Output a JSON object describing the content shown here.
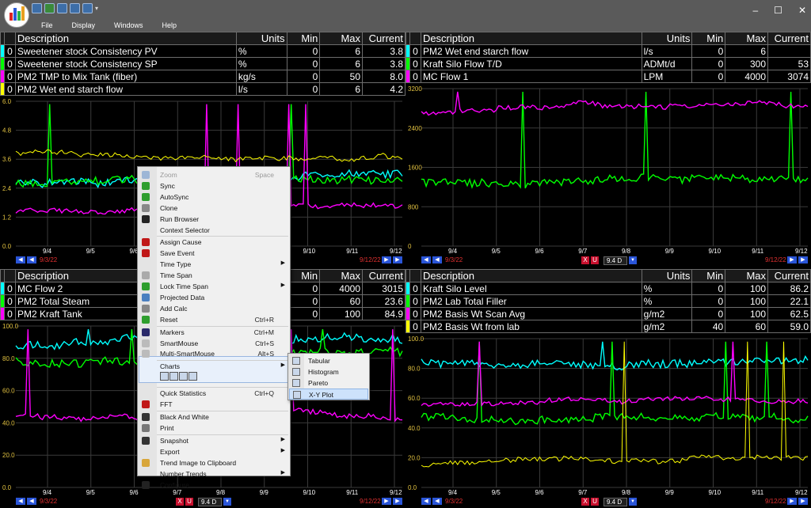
{
  "menu": {
    "file": "File",
    "display": "Display",
    "windows": "Windows",
    "help": "Help"
  },
  "window_controls": {
    "minimize": "–",
    "maximize": "☐",
    "close": "✕"
  },
  "legend_headers": {
    "description": "Description",
    "units": "Units",
    "min": "Min",
    "max": "Max",
    "current": "Current"
  },
  "panels": [
    {
      "rows": [
        {
          "idx": "0",
          "color": "#00ffff",
          "description": "Sweetener stock Consistency PV",
          "units": "%",
          "min": "0",
          "max": "6",
          "current": "3.8"
        },
        {
          "idx": "0",
          "color": "#00ff00",
          "description": "Sweetener stock Consistency SP",
          "units": "%",
          "min": "0",
          "max": "6",
          "current": "3.8"
        },
        {
          "idx": "0",
          "color": "#ff00ff",
          "description": "PM2 TMP to Mix Tank (fiber)",
          "units": "kg/s",
          "min": "0",
          "max": "50",
          "current": "8.0"
        },
        {
          "idx": "0",
          "color": "#ffff00",
          "description": "PM2 Wet end starch flow",
          "units": "l/s",
          "min": "0",
          "max": "6",
          "current": "4.2"
        }
      ],
      "y_ticks": [
        "6.0",
        "4.8",
        "3.6",
        "2.4",
        "1.2",
        "0.0"
      ],
      "x_ticks": [
        "9/4",
        "9/5",
        "9/6",
        "9/7",
        "9/8",
        "9/9",
        "9/10",
        "9/11",
        "9/12"
      ],
      "start_date": "9/3/22",
      "end_date": "9/12/22"
    },
    {
      "rows": [
        {
          "idx": "0",
          "color": "#00ffff",
          "description": "PM2 Wet end starch flow",
          "units": "l/s",
          "min": "0",
          "max": "6",
          "current": ""
        },
        {
          "idx": "0",
          "color": "#00ff00",
          "description": "Kraft Silo Flow T/D",
          "units": "ADMt/d",
          "min": "0",
          "max": "300",
          "current": "53"
        },
        {
          "idx": "0",
          "color": "#ff00ff",
          "description": "MC Flow 1",
          "units": "LPM",
          "min": "0",
          "max": "4000",
          "current": "3074"
        }
      ],
      "y_ticks": [
        "3200",
        "2400",
        "1600",
        "800",
        "0"
      ],
      "x_ticks": [
        "9/4",
        "9/5",
        "9/6",
        "9/7",
        "9/8",
        "9/9",
        "9/10",
        "9/11",
        "9/12"
      ],
      "start_date": "9/3/22",
      "end_date": "9/12/22",
      "time_span": "9.4 D"
    },
    {
      "rows": [
        {
          "idx": "0",
          "color": "#00ffff",
          "description": "MC Flow 2",
          "units": "",
          "min": "0",
          "max": "4000",
          "current": "3015"
        },
        {
          "idx": "0",
          "color": "#00ff00",
          "description": "PM2 Total Steam",
          "units": "",
          "min": "0",
          "max": "60",
          "current": "23.6"
        },
        {
          "idx": "0",
          "color": "#ff00ff",
          "description": "PM2 Kraft Tank",
          "units": "",
          "min": "0",
          "max": "100",
          "current": "84.9"
        }
      ],
      "y_ticks": [
        "100.0",
        "80.0",
        "60.0",
        "40.0",
        "20.0",
        "0.0"
      ],
      "x_ticks": [
        "9/4",
        "9/5",
        "9/6",
        "9/7",
        "9/8",
        "9/9",
        "9/10",
        "9/11",
        "9/12"
      ],
      "start_date": "9/3/22",
      "end_date": "9/12/22",
      "time_span": "9.4 D"
    },
    {
      "rows": [
        {
          "idx": "0",
          "color": "#00ffff",
          "description": "Kraft Silo Level",
          "units": "%",
          "min": "0",
          "max": "100",
          "current": "86.2"
        },
        {
          "idx": "0",
          "color": "#00ff00",
          "description": "PM2 Lab Total Filler",
          "units": "%",
          "min": "0",
          "max": "100",
          "current": "22.1"
        },
        {
          "idx": "0",
          "color": "#ff00ff",
          "description": "PM2 Basis Wt Scan Avg",
          "units": "g/m2",
          "min": "0",
          "max": "100",
          "current": "62.5"
        },
        {
          "idx": "0",
          "color": "#ffff00",
          "description": "PM2 Basis Wt from lab",
          "units": "g/m2",
          "min": "40",
          "max": "60",
          "current": "59.0"
        }
      ],
      "y_ticks": [
        "100.0",
        "80.0",
        "60.0",
        "40.0",
        "20.0",
        "0.0"
      ],
      "x_ticks": [
        "9/4",
        "9/5",
        "9/6",
        "9/7",
        "9/8",
        "9/9",
        "9/10",
        "9/11",
        "9/12"
      ],
      "start_date": "9/3/22",
      "end_date": "9/12/22",
      "time_span": "9.4 D"
    }
  ],
  "context_menu": [
    {
      "label": "Zoom",
      "shortcut": "Space",
      "disabled": true,
      "icon": "zoom-icon",
      "color": "#9db6d6"
    },
    {
      "label": "Sync",
      "icon": "sync-icon",
      "color": "#2e9e2e"
    },
    {
      "label": "AutoSync",
      "icon": "autosync-icon",
      "color": "#2e9e2e"
    },
    {
      "label": "Clone",
      "icon": "clone-icon",
      "color": "#888888"
    },
    {
      "label": "Run Browser",
      "icon": "run-icon",
      "color": "#222222"
    },
    {
      "label": "Context Selector",
      "icon": ""
    },
    {
      "label": "Assign Cause",
      "icon": "assign-cause-icon",
      "color": "#c01818",
      "sep_before": true
    },
    {
      "label": "Save Event",
      "icon": "save-event-icon",
      "color": "#c01818"
    },
    {
      "label": "Time Type",
      "submenu": true,
      "icon": ""
    },
    {
      "label": "Time Span",
      "icon": "time-span-icon",
      "color": "#aaaaaa"
    },
    {
      "label": "Lock Time Span",
      "submenu": true,
      "icon": "lock-time-span-icon",
      "color": "#2e9e2e"
    },
    {
      "label": "Projected Data",
      "icon": "projected-data-icon",
      "color": "#4a7fc0"
    },
    {
      "label": "Add Calc",
      "icon": "add-calc-icon",
      "color": "#888888"
    },
    {
      "label": "Reset",
      "shortcut": "Ctrl+R",
      "icon": "reset-icon",
      "color": "#2e9e2e"
    },
    {
      "label": "Markers",
      "shortcut": "Ctrl+M",
      "icon": "markers-icon",
      "color": "#2a2a6a",
      "sep_before": true
    },
    {
      "label": "SmartMouse",
      "shortcut": "Ctrl+S",
      "icon": "smartmouse-icon",
      "color": "#bbbbbb"
    },
    {
      "label": "Multi-SmartMouse",
      "shortcut": "Alt+S",
      "icon": "multi-smartmouse-icon",
      "color": "#bbbbbb"
    },
    {
      "label": "Charts",
      "submenu": true,
      "icon": "",
      "sep_before": true,
      "highlight": true
    },
    {
      "label": "Quick Statistics",
      "shortcut": "Ctrl+Q",
      "icon": "",
      "sep_before": true
    },
    {
      "label": "FFT",
      "icon": "fft-icon",
      "color": "#c01818"
    },
    {
      "label": "Black And White",
      "icon": "black-white-icon",
      "color": "#333333",
      "sep_before": true
    },
    {
      "label": "Print",
      "icon": "print-icon",
      "color": "#777777"
    },
    {
      "label": "Snapshot",
      "submenu": true,
      "icon": "snapshot-icon",
      "color": "#333333",
      "sep_before": true
    },
    {
      "label": "Export",
      "submenu": true,
      "icon": ""
    },
    {
      "label": "Trend Image to Clipboard",
      "icon": "clipboard-icon",
      "color": "#d8a63a"
    },
    {
      "label": "Number Trends",
      "submenu": true,
      "icon": ""
    },
    {
      "label": "Configure",
      "icon": "configure-icon",
      "color": "#222222"
    }
  ],
  "charts_submenu": [
    {
      "label": "Tabular",
      "icon": "tabular-icon"
    },
    {
      "label": "Histogram",
      "icon": "histogram-icon"
    },
    {
      "label": "Pareto",
      "icon": "pareto-icon"
    },
    {
      "label": "X-Y Plot",
      "icon": "xy-plot-icon",
      "highlight": true
    }
  ]
}
